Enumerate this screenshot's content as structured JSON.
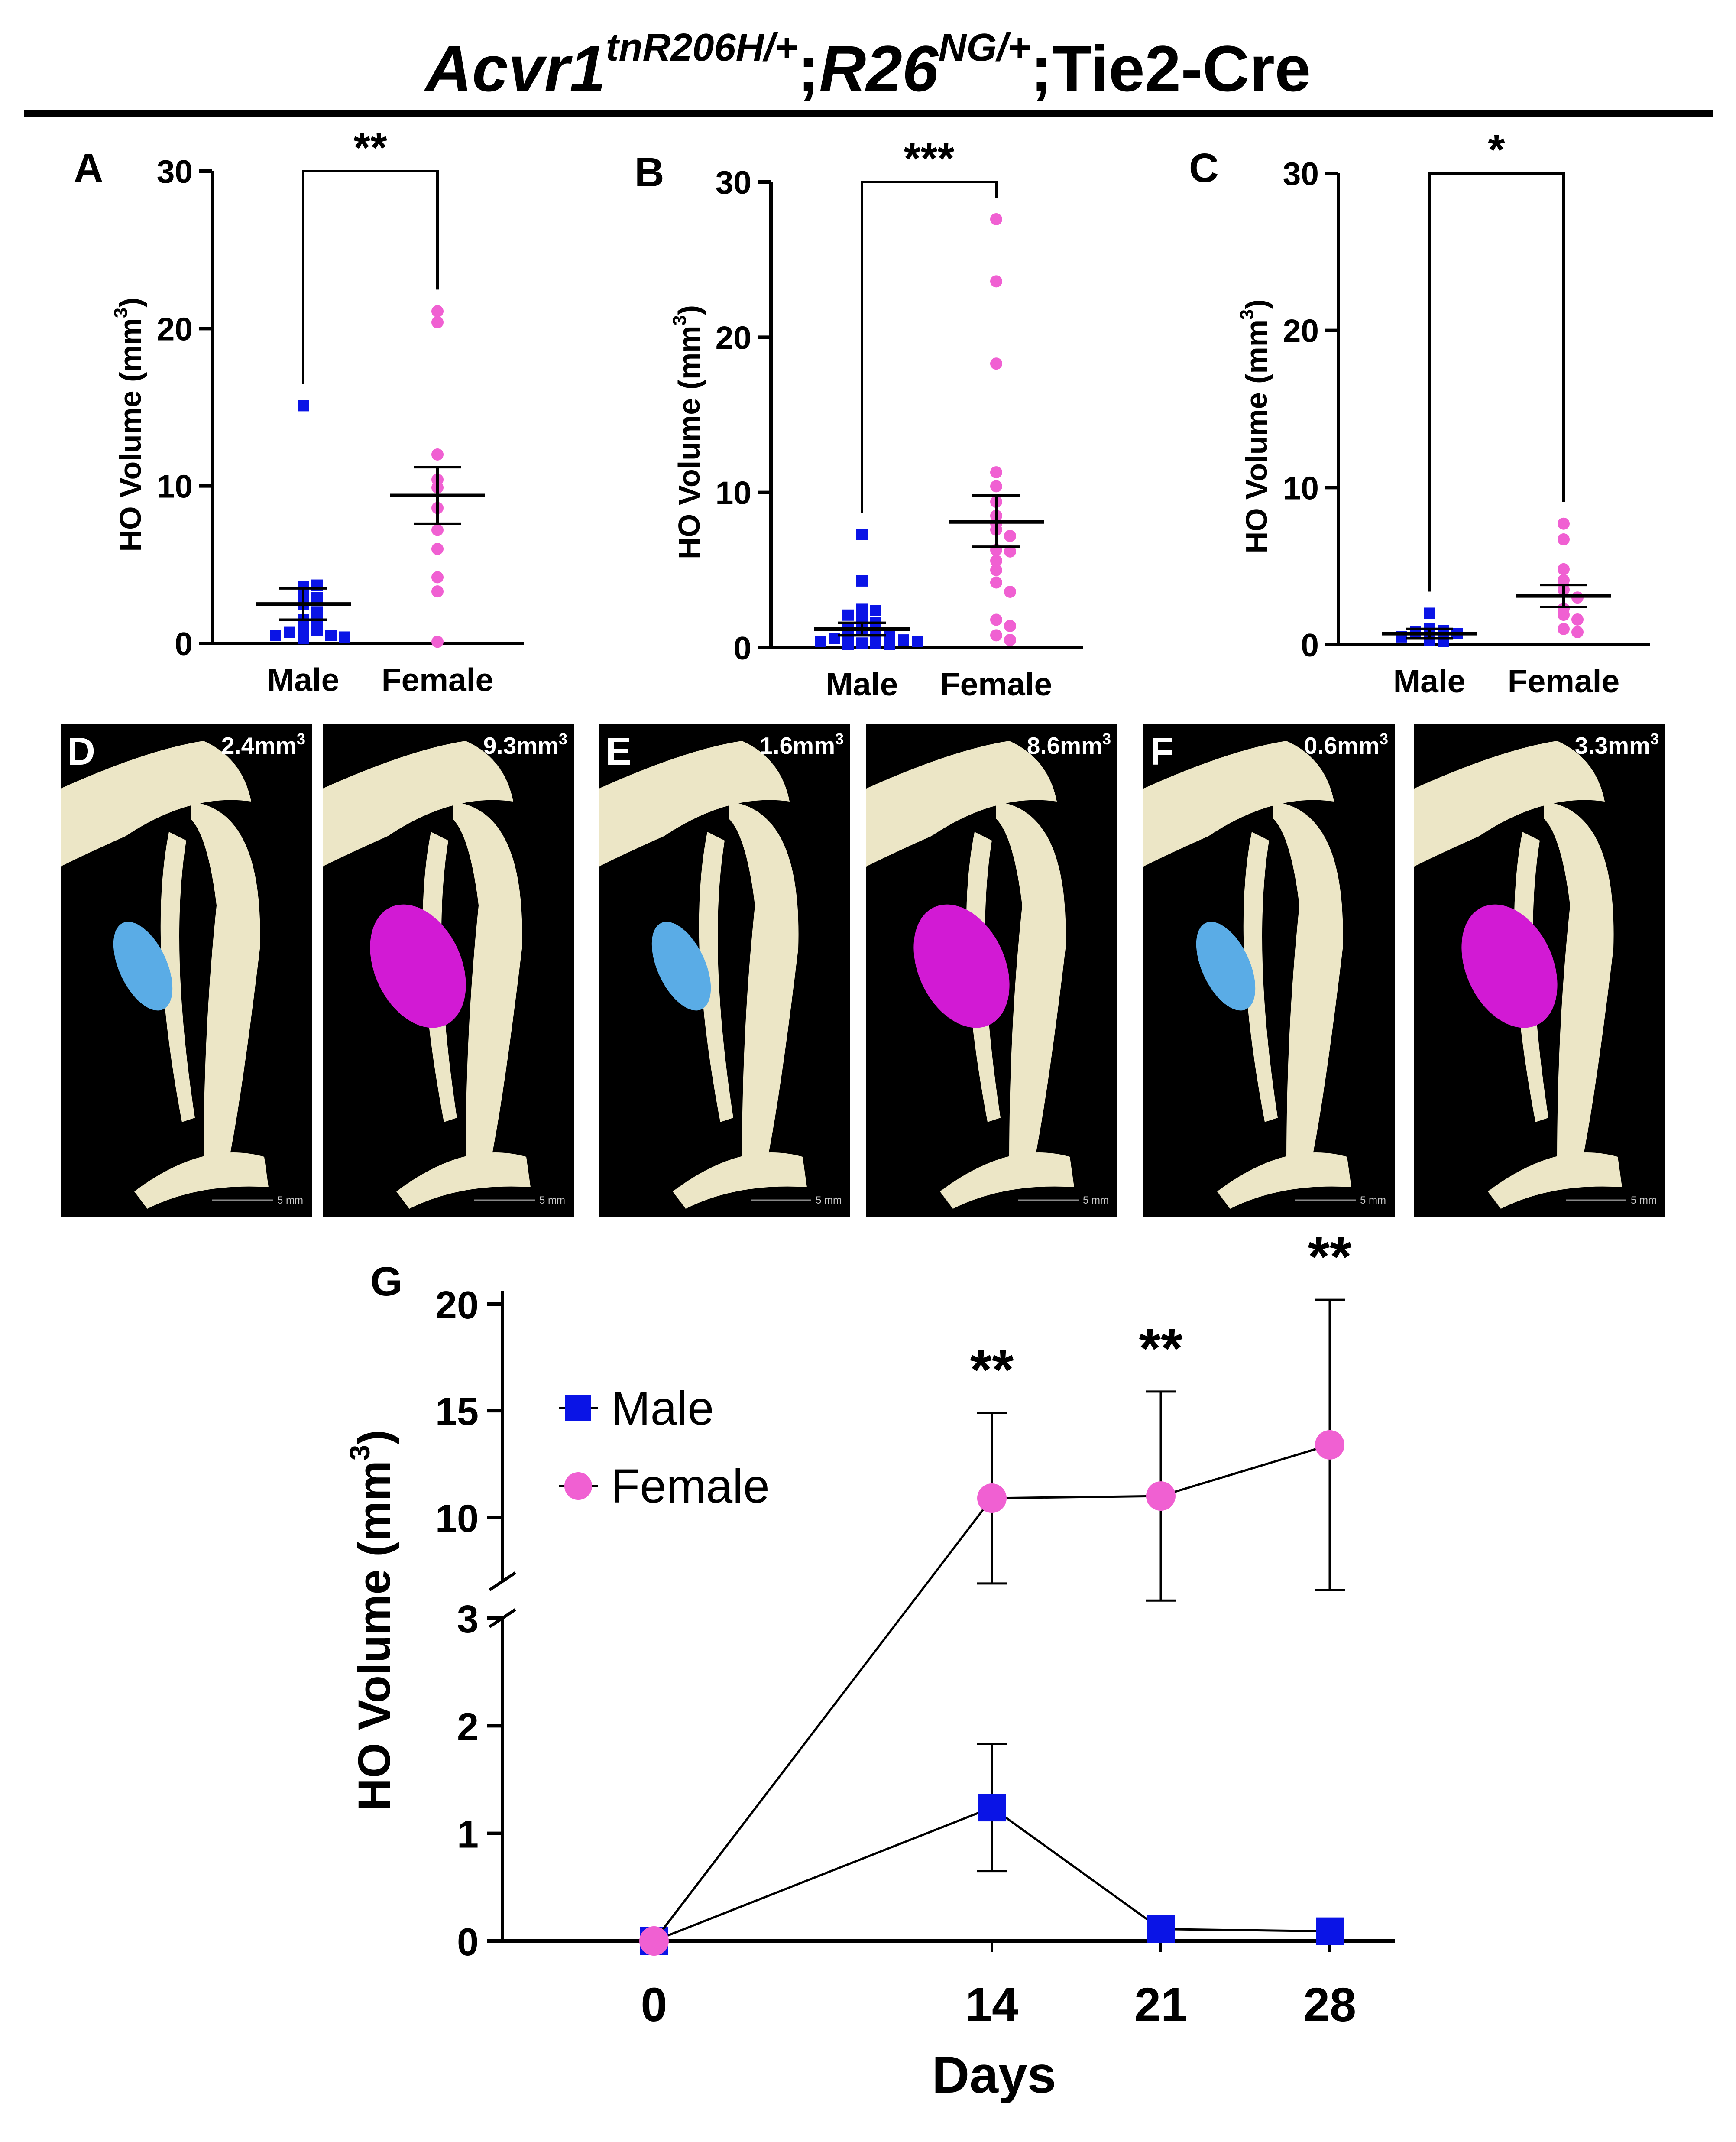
{
  "colors": {
    "male": "#0a14e6",
    "female": "#f060d2",
    "bone": "#ece6c6",
    "panel_bg": "#000000",
    "male_ho": "#5aace6",
    "female_ho": "#d21ad4"
  },
  "title": {
    "gene": "Acvr1",
    "gene_sup": "tnR206H/+",
    "sep1": ";",
    "reporter": "R26",
    "reporter_sup": "NG/+",
    "sep2": ";",
    "driver": "Tie2-Cre"
  },
  "chart_data": [
    {
      "panel": "A",
      "type": "scatter",
      "ylabel": "HO Volume (mm",
      "ylabel_sup": "3",
      "ylabel_end": ")",
      "ylim": [
        0,
        30
      ],
      "yticks": [
        "0",
        "10",
        "20",
        "30"
      ],
      "categories": [
        "Male",
        "Female"
      ],
      "series": [
        {
          "group": "Male",
          "marker": "square",
          "mean": 2.5,
          "sem": [
            1.5,
            3.5
          ],
          "values": [
            15.1,
            3.6,
            3.7,
            3.0,
            2.9,
            2.5,
            2.0,
            1.5,
            1.3,
            1.0,
            0.8,
            0.7,
            0.5,
            0.5,
            0.4,
            0.3
          ]
        },
        {
          "group": "Female",
          "marker": "circle",
          "mean": 9.4,
          "sem": [
            7.6,
            11.2
          ],
          "values": [
            21.1,
            20.4,
            12.0,
            10.4,
            9.9,
            8.6,
            7.2,
            6.0,
            4.2,
            3.3,
            0.1
          ]
        }
      ],
      "significance": "**"
    },
    {
      "panel": "B",
      "type": "scatter",
      "ylabel": "HO Volume (mm",
      "ylabel_sup": "3",
      "ylabel_end": ")",
      "ylim": [
        0,
        30
      ],
      "yticks": [
        "0",
        "10",
        "20",
        "30"
      ],
      "categories": [
        "Male",
        "Female"
      ],
      "series": [
        {
          "group": "Male",
          "marker": "square",
          "mean": 1.2,
          "sem": [
            0.8,
            1.6
          ],
          "values": [
            7.3,
            4.3,
            2.5,
            2.4,
            2.1,
            1.8,
            1.6,
            1.3,
            1.2,
            1.0,
            0.9,
            0.7,
            0.6,
            0.5,
            0.4,
            0.4,
            0.3,
            0.3,
            0.2,
            0.2
          ]
        },
        {
          "group": "Female",
          "marker": "circle",
          "mean": 8.1,
          "sem": [
            6.5,
            9.8
          ],
          "values": [
            27.6,
            23.6,
            18.3,
            11.3,
            10.4,
            9.4,
            8.5,
            8.0,
            7.6,
            7.2,
            6.3,
            6.2,
            5.6,
            5.0,
            4.2,
            3.6,
            1.8,
            1.4,
            0.8,
            0.5
          ]
        }
      ],
      "significance": "***"
    },
    {
      "panel": "C",
      "type": "scatter",
      "ylabel": "HO Volume (mm",
      "ylabel_sup": "3",
      "ylabel_end": ")",
      "ylim": [
        0,
        30
      ],
      "yticks": [
        "0",
        "10",
        "20",
        "30"
      ],
      "categories": [
        "Male",
        "Female"
      ],
      "series": [
        {
          "group": "Male",
          "marker": "square",
          "mean": 0.7,
          "sem": [
            0.4,
            1.0
          ],
          "values": [
            2.0,
            1.0,
            0.9,
            0.8,
            0.7,
            0.5,
            0.3,
            0.2
          ]
        },
        {
          "group": "Female",
          "marker": "circle",
          "mean": 3.1,
          "sem": [
            2.4,
            3.8
          ],
          "values": [
            7.7,
            6.7,
            4.8,
            4.1,
            3.5,
            3.0,
            2.3,
            1.9,
            1.6,
            1.0,
            0.8
          ]
        }
      ],
      "significance": "*"
    },
    {
      "panel": "G",
      "type": "line",
      "xlabel": "Days",
      "ylabel": "HO Volume (mm",
      "ylabel_sup": "3",
      "ylabel_end": ")",
      "x": [
        0,
        14,
        21,
        28
      ],
      "xticks": [
        "0",
        "14",
        "21",
        "28"
      ],
      "ylim_lower": [
        0,
        3
      ],
      "ylim_upper": [
        7,
        20
      ],
      "yticks_lower": [
        "0",
        "1",
        "2",
        "3"
      ],
      "yticks_upper": [
        "10",
        "15",
        "20"
      ],
      "series": [
        {
          "name": "Male",
          "marker": "square",
          "values": [
            0,
            1.24,
            0.11,
            0.09
          ],
          "err": [
            0,
            0.59,
            0,
            0
          ]
        },
        {
          "name": "Female",
          "marker": "circle",
          "values": [
            0,
            10.9,
            11.0,
            13.4
          ],
          "err": [
            0,
            4.0,
            4.9,
            6.8
          ]
        }
      ],
      "significance": [
        "",
        "**",
        "**",
        "**"
      ]
    }
  ],
  "images": [
    {
      "panel": "D",
      "male_label": "2.4mm",
      "female_label": "9.3mm",
      "sup": "3",
      "scale": "5 mm"
    },
    {
      "panel": "E",
      "male_label": "1.6mm",
      "female_label": "8.6mm",
      "sup": "3",
      "scale": "5 mm"
    },
    {
      "panel": "F",
      "male_label": "0.6mm",
      "female_label": "3.3mm",
      "sup": "3",
      "scale": "5 mm"
    }
  ]
}
